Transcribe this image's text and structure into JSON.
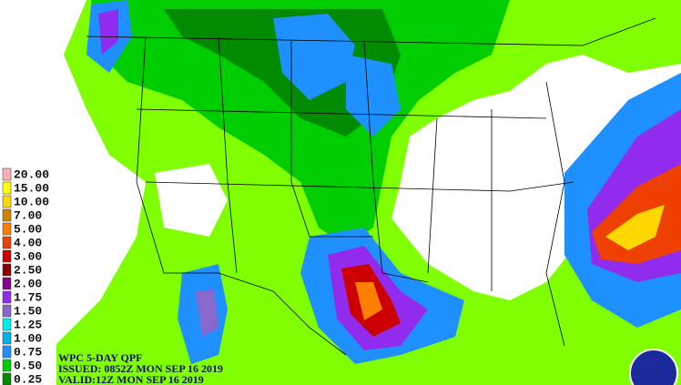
{
  "product": {
    "title": "WPC 5-DAY QPF",
    "issued": "ISSUED: 0852Z MON SEP 16 2019",
    "valid": "VALID:12Z MON SEP 16 2019"
  },
  "legend": {
    "items": [
      {
        "label": "20.00",
        "color": "#ffaeb9"
      },
      {
        "label": "15.00",
        "color": "#ffff00"
      },
      {
        "label": "10.00",
        "color": "#ffd700"
      },
      {
        "label": "7.00",
        "color": "#cd8500"
      },
      {
        "label": "5.00",
        "color": "#ff7f00"
      },
      {
        "label": "4.00",
        "color": "#ee4000"
      },
      {
        "label": "3.00",
        "color": "#cd0000"
      },
      {
        "label": "2.50",
        "color": "#8b0000"
      },
      {
        "label": "2.00",
        "color": "#8b008b"
      },
      {
        "label": "1.75",
        "color": "#912cee"
      },
      {
        "label": "1.50",
        "color": "#8968cd"
      },
      {
        "label": "1.25",
        "color": "#00eeee"
      },
      {
        "label": "1.00",
        "color": "#00b2ee"
      },
      {
        "label": "0.75",
        "color": "#1e90ff"
      },
      {
        "label": "0.50",
        "color": "#00cd00"
      },
      {
        "label": "0.25",
        "color": "#008b00"
      }
    ]
  }
}
